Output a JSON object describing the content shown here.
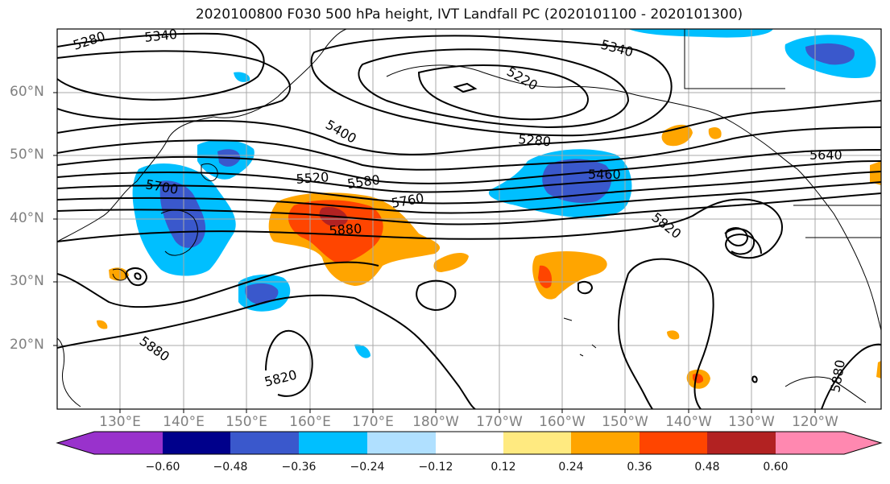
{
  "title": "2020100800 F030 500 hPa height, IVT Landfall PC (2020101100 - 2020101300)",
  "map": {
    "lat_labels": [
      "60°N",
      "50°N",
      "40°N",
      "30°N",
      "20°N"
    ],
    "lon_labels": [
      "130°E",
      "140°E",
      "150°E",
      "160°E",
      "170°E",
      "180°W",
      "170°W",
      "160°W",
      "150°W",
      "140°W",
      "130°W",
      "120°W"
    ],
    "contour_labels": [
      "5280",
      "5340",
      "5340",
      "5220",
      "5400",
      "5280",
      "5640",
      "5460",
      "5520",
      "5580",
      "5700",
      "5760",
      "5880",
      "5820",
      "5880",
      "5820",
      "5880"
    ]
  },
  "colorbar": {
    "ticks": [
      "−0.60",
      "−0.48",
      "−0.36",
      "−0.24",
      "−0.12",
      "0.12",
      "0.24",
      "0.36",
      "0.48",
      "0.60"
    ],
    "colors": [
      "#9932CC",
      "#00008B",
      "#3A58CC",
      "#00BFFF",
      "#B0E0FF",
      "#FFFFFF",
      "#FFEA80",
      "#FFA500",
      "#FF4500",
      "#B22222",
      "#FF88B0"
    ]
  }
}
